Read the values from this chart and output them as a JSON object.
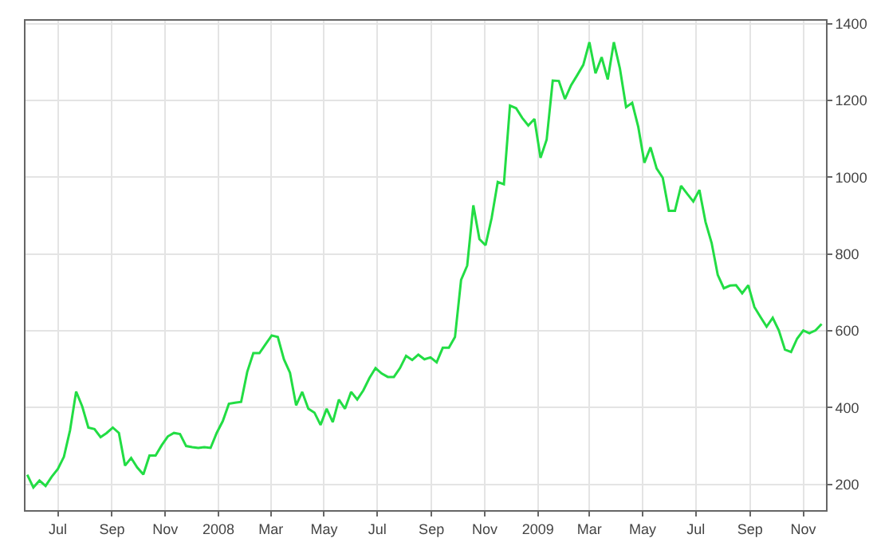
{
  "chart_data": {
    "type": "line",
    "x": [
      "2007-05-27",
      "2007-06-03",
      "2007-06-10",
      "2007-06-17",
      "2007-06-24",
      "2007-07-01",
      "2007-07-08",
      "2007-07-15",
      "2007-07-22",
      "2007-07-29",
      "2007-08-05",
      "2007-08-12",
      "2007-08-19",
      "2007-08-26",
      "2007-09-02",
      "2007-09-09",
      "2007-09-16",
      "2007-09-23",
      "2007-09-30",
      "2007-10-07",
      "2007-10-14",
      "2007-10-21",
      "2007-10-28",
      "2007-11-04",
      "2007-11-11",
      "2007-11-18",
      "2007-11-25",
      "2007-12-02",
      "2007-12-09",
      "2007-12-16",
      "2007-12-23",
      "2007-12-30",
      "2008-01-06",
      "2008-01-13",
      "2008-01-20",
      "2008-01-27",
      "2008-02-03",
      "2008-02-10",
      "2008-02-17",
      "2008-02-24",
      "2008-03-02",
      "2008-03-09",
      "2008-03-16",
      "2008-03-23",
      "2008-03-30",
      "2008-04-06",
      "2008-04-13",
      "2008-04-20",
      "2008-04-27",
      "2008-05-04",
      "2008-05-11",
      "2008-05-18",
      "2008-05-25",
      "2008-06-01",
      "2008-06-08",
      "2008-06-15",
      "2008-06-22",
      "2008-06-29",
      "2008-07-06",
      "2008-07-13",
      "2008-07-20",
      "2008-07-27",
      "2008-08-03",
      "2008-08-10",
      "2008-08-17",
      "2008-08-24",
      "2008-08-31",
      "2008-09-07",
      "2008-09-14",
      "2008-09-21",
      "2008-09-28",
      "2008-10-05",
      "2008-10-12",
      "2008-10-19",
      "2008-10-26",
      "2008-11-02",
      "2008-11-09",
      "2008-11-16",
      "2008-11-23",
      "2008-11-30",
      "2008-12-07",
      "2008-12-14",
      "2008-12-21",
      "2008-12-28",
      "2009-01-04",
      "2009-01-11",
      "2009-01-18",
      "2009-01-25",
      "2009-02-01",
      "2009-02-08",
      "2009-02-15",
      "2009-02-22",
      "2009-03-01",
      "2009-03-08",
      "2009-03-15",
      "2009-03-22",
      "2009-03-29",
      "2009-04-05",
      "2009-04-12",
      "2009-04-19",
      "2009-04-26",
      "2009-05-03",
      "2009-05-10",
      "2009-05-17",
      "2009-05-24",
      "2009-05-31",
      "2009-06-07",
      "2009-06-14",
      "2009-06-21",
      "2009-06-28",
      "2009-07-05",
      "2009-07-12",
      "2009-07-19",
      "2009-07-26",
      "2009-08-02",
      "2009-08-09",
      "2009-08-16",
      "2009-08-23",
      "2009-08-30",
      "2009-09-06",
      "2009-09-13",
      "2009-09-20",
      "2009-09-27",
      "2009-10-04",
      "2009-10-11",
      "2009-10-18",
      "2009-10-25",
      "2009-11-01",
      "2009-11-08",
      "2009-11-15",
      "2009-11-22"
    ],
    "series": [
      {
        "color": "#22dd44",
        "values": [
          225,
          192,
          210,
          196,
          220,
          240,
          272,
          341,
          442,
          403,
          348,
          344,
          323,
          334,
          348,
          334,
          249,
          269,
          244,
          226,
          275,
          275,
          302,
          325,
          334,
          331,
          300,
          297,
          295,
          297,
          295,
          334,
          365,
          410,
          413,
          415,
          493,
          542,
          542,
          565,
          588,
          584,
          526,
          491,
          406,
          441,
          397,
          387,
          355,
          397,
          362,
          421,
          397,
          441,
          421,
          445,
          477,
          503,
          489,
          480,
          480,
          503,
          535,
          524,
          538,
          526,
          531,
          518,
          556,
          556,
          584,
          733,
          770,
          927,
          839,
          823,
          894,
          988,
          982,
          1187,
          1180,
          1155,
          1135,
          1152,
          1051,
          1098,
          1252,
          1251,
          1204,
          1240,
          1266,
          1293,
          1352,
          1271,
          1313,
          1255,
          1352,
          1283,
          1183,
          1194,
          1131,
          1038,
          1078,
          1023,
          999,
          913,
          913,
          978,
          957,
          937,
          967,
          884,
          829,
          746,
          711,
          718,
          719,
          698,
          719,
          662,
          636,
          611,
          634,
          601,
          551,
          545,
          580,
          601,
          594,
          601,
          618
        ]
      }
    ],
    "xlim": [
      "2007-05-25",
      "2009-11-27"
    ],
    "xticks": [
      {
        "value": "2007-07-01",
        "label": "Jul"
      },
      {
        "value": "2007-09-01",
        "label": "Sep"
      },
      {
        "value": "2007-11-01",
        "label": "Nov"
      },
      {
        "value": "2008-01-01",
        "label": "2008"
      },
      {
        "value": "2008-03-01",
        "label": "Mar"
      },
      {
        "value": "2008-05-01",
        "label": "May"
      },
      {
        "value": "2008-07-01",
        "label": "Jul"
      },
      {
        "value": "2008-09-01",
        "label": "Sep"
      },
      {
        "value": "2008-11-01",
        "label": "Nov"
      },
      {
        "value": "2009-01-01",
        "label": "2009"
      },
      {
        "value": "2009-03-01",
        "label": "Mar"
      },
      {
        "value": "2009-05-01",
        "label": "May"
      },
      {
        "value": "2009-07-01",
        "label": "Jul"
      },
      {
        "value": "2009-09-01",
        "label": "Sep"
      },
      {
        "value": "2009-11-01",
        "label": "Nov"
      }
    ],
    "ylim": [
      133,
      1408
    ],
    "yticks": [
      200,
      400,
      600,
      800,
      1000,
      1200,
      1400
    ],
    "grid": true,
    "line_style": "solid",
    "marker": "none"
  }
}
